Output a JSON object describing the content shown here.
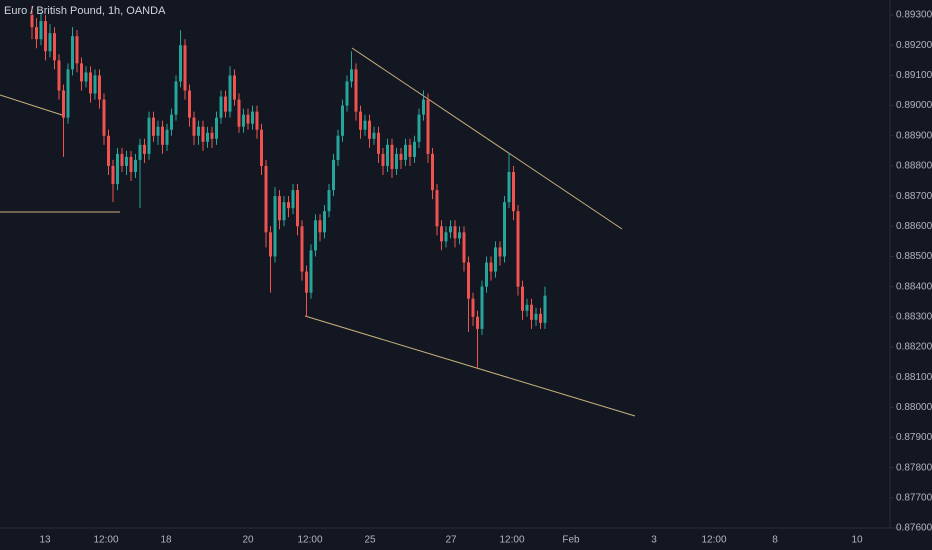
{
  "chart_data": {
    "type": "candlestick",
    "title": "Euro / British Pound, 1h, OANDA",
    "up_color": "#26a69a",
    "down_color": "#ef5350",
    "ylim": [
      0.876,
      0.8935
    ],
    "yticks": [
      {
        "value": 0.893,
        "label": "0.89300"
      },
      {
        "value": 0.892,
        "label": "0.89200"
      },
      {
        "value": 0.891,
        "label": "0.89100"
      },
      {
        "value": 0.89,
        "label": "0.89000"
      },
      {
        "value": 0.889,
        "label": "0.88900"
      },
      {
        "value": 0.888,
        "label": "0.88800"
      },
      {
        "value": 0.887,
        "label": "0.88700"
      },
      {
        "value": 0.886,
        "label": "0.88600"
      },
      {
        "value": 0.885,
        "label": "0.88500"
      },
      {
        "value": 0.884,
        "label": "0.88400"
      },
      {
        "value": 0.883,
        "label": "0.88300"
      },
      {
        "value": 0.882,
        "label": "0.88200"
      },
      {
        "value": 0.881,
        "label": "0.88100"
      },
      {
        "value": 0.88,
        "label": "0.88000"
      },
      {
        "value": 0.879,
        "label": "0.87900"
      },
      {
        "value": 0.878,
        "label": "0.87800"
      },
      {
        "value": 0.877,
        "label": "0.87700"
      },
      {
        "value": 0.876,
        "label": "0.87600"
      }
    ],
    "x_labels": [
      "13",
      "12:00",
      "18",
      "20",
      "12:00",
      "25",
      "27",
      "12:00",
      "Feb",
      "3",
      "12:00",
      "8",
      "10"
    ],
    "candles": [
      [
        0.893,
        0.8933,
        0.8922,
        0.8926
      ],
      [
        0.8926,
        0.8929,
        0.8919,
        0.8922
      ],
      [
        0.8922,
        0.8931,
        0.892,
        0.8928
      ],
      [
        0.8928,
        0.893,
        0.8915,
        0.8918
      ],
      [
        0.8918,
        0.8927,
        0.8916,
        0.8924
      ],
      [
        0.8924,
        0.8926,
        0.8912,
        0.8915
      ],
      [
        0.8915,
        0.8917,
        0.8902,
        0.8905
      ],
      [
        0.8905,
        0.8907,
        0.8883,
        0.8896
      ],
      [
        0.8896,
        0.8914,
        0.8894,
        0.8912
      ],
      [
        0.8912,
        0.8926,
        0.891,
        0.8923
      ],
      [
        0.8923,
        0.8925,
        0.8911,
        0.8914
      ],
      [
        0.8914,
        0.8916,
        0.8905,
        0.8908
      ],
      [
        0.8908,
        0.8913,
        0.8906,
        0.8911
      ],
      [
        0.8911,
        0.8913,
        0.8901,
        0.8904
      ],
      [
        0.8904,
        0.8912,
        0.8902,
        0.891
      ],
      [
        0.891,
        0.8912,
        0.8899,
        0.8902
      ],
      [
        0.8902,
        0.8904,
        0.8887,
        0.889
      ],
      [
        0.889,
        0.8892,
        0.8877,
        0.888
      ],
      [
        0.888,
        0.8882,
        0.8868,
        0.8874
      ],
      [
        0.8874,
        0.8886,
        0.8872,
        0.8884
      ],
      [
        0.8884,
        0.8886,
        0.8878,
        0.888
      ],
      [
        0.888,
        0.8885,
        0.8877,
        0.8883
      ],
      [
        0.8883,
        0.8885,
        0.8875,
        0.8878
      ],
      [
        0.8878,
        0.8884,
        0.8876,
        0.8882
      ],
      [
        0.8882,
        0.8889,
        0.8866,
        0.8887
      ],
      [
        0.8887,
        0.8889,
        0.8881,
        0.8884
      ],
      [
        0.8884,
        0.8898,
        0.8882,
        0.8896
      ],
      [
        0.8896,
        0.8898,
        0.8888,
        0.889
      ],
      [
        0.889,
        0.8895,
        0.8887,
        0.8893
      ],
      [
        0.8893,
        0.8895,
        0.8884,
        0.8887
      ],
      [
        0.8887,
        0.8894,
        0.8885,
        0.8892
      ],
      [
        0.8892,
        0.8899,
        0.889,
        0.8897
      ],
      [
        0.8897,
        0.891,
        0.8895,
        0.8908
      ],
      [
        0.8908,
        0.8925,
        0.8906,
        0.892
      ],
      [
        0.892,
        0.8922,
        0.8902,
        0.8905
      ],
      [
        0.8905,
        0.8907,
        0.8893,
        0.8896
      ],
      [
        0.8896,
        0.8898,
        0.8887,
        0.889
      ],
      [
        0.889,
        0.8895,
        0.8887,
        0.8893
      ],
      [
        0.8893,
        0.8895,
        0.8885,
        0.8888
      ],
      [
        0.8888,
        0.8893,
        0.8886,
        0.8891
      ],
      [
        0.8891,
        0.8893,
        0.8886,
        0.8889
      ],
      [
        0.8889,
        0.8898,
        0.8887,
        0.8896
      ],
      [
        0.8896,
        0.8905,
        0.8894,
        0.8903
      ],
      [
        0.8903,
        0.8905,
        0.8896,
        0.8898
      ],
      [
        0.8898,
        0.8913,
        0.8896,
        0.891
      ],
      [
        0.891,
        0.8912,
        0.89,
        0.8902
      ],
      [
        0.8902,
        0.8904,
        0.8891,
        0.8893
      ],
      [
        0.8893,
        0.8899,
        0.8891,
        0.8897
      ],
      [
        0.8897,
        0.8899,
        0.8892,
        0.8894
      ],
      [
        0.8894,
        0.89,
        0.8892,
        0.8898
      ],
      [
        0.8898,
        0.89,
        0.8889,
        0.8892
      ],
      [
        0.8892,
        0.8894,
        0.8877,
        0.888
      ],
      [
        0.888,
        0.8882,
        0.8853,
        0.8858
      ],
      [
        0.8858,
        0.886,
        0.8838,
        0.885
      ],
      [
        0.885,
        0.8873,
        0.8848,
        0.887
      ],
      [
        0.887,
        0.8872,
        0.8859,
        0.8862
      ],
      [
        0.8862,
        0.887,
        0.886,
        0.8868
      ],
      [
        0.8868,
        0.887,
        0.8863,
        0.8866
      ],
      [
        0.8866,
        0.8874,
        0.8864,
        0.8872
      ],
      [
        0.8872,
        0.8874,
        0.8857,
        0.886
      ],
      [
        0.886,
        0.8862,
        0.8842,
        0.8845
      ],
      [
        0.8845,
        0.8847,
        0.883,
        0.8838
      ],
      [
        0.8838,
        0.8854,
        0.8836,
        0.8852
      ],
      [
        0.8852,
        0.8864,
        0.885,
        0.8862
      ],
      [
        0.8862,
        0.8864,
        0.8855,
        0.8858
      ],
      [
        0.8858,
        0.8867,
        0.8856,
        0.8865
      ],
      [
        0.8865,
        0.8874,
        0.8863,
        0.8872
      ],
      [
        0.8872,
        0.8884,
        0.887,
        0.8882
      ],
      [
        0.8882,
        0.8892,
        0.888,
        0.889
      ],
      [
        0.889,
        0.8902,
        0.8888,
        0.89
      ],
      [
        0.89,
        0.891,
        0.8898,
        0.8908
      ],
      [
        0.8908,
        0.8918,
        0.8906,
        0.8912
      ],
      [
        0.8912,
        0.8914,
        0.8895,
        0.8898
      ],
      [
        0.8898,
        0.89,
        0.8889,
        0.8892
      ],
      [
        0.8892,
        0.8897,
        0.889,
        0.8895
      ],
      [
        0.8895,
        0.8897,
        0.8886,
        0.8889
      ],
      [
        0.8889,
        0.8893,
        0.8887,
        0.8891
      ],
      [
        0.8891,
        0.8893,
        0.8881,
        0.8884
      ],
      [
        0.8884,
        0.8886,
        0.8877,
        0.888
      ],
      [
        0.888,
        0.8889,
        0.8878,
        0.8887
      ],
      [
        0.8887,
        0.8889,
        0.8876,
        0.8879
      ],
      [
        0.8879,
        0.8886,
        0.8877,
        0.8884
      ],
      [
        0.8884,
        0.8886,
        0.8879,
        0.8882
      ],
      [
        0.8882,
        0.8889,
        0.888,
        0.8887
      ],
      [
        0.8887,
        0.8889,
        0.888,
        0.8883
      ],
      [
        0.8883,
        0.889,
        0.8881,
        0.8888
      ],
      [
        0.8888,
        0.8899,
        0.8886,
        0.8897
      ],
      [
        0.8897,
        0.8905,
        0.8895,
        0.8902
      ],
      [
        0.8902,
        0.8904,
        0.8881,
        0.8884
      ],
      [
        0.8884,
        0.8886,
        0.8869,
        0.8872
      ],
      [
        0.8872,
        0.8874,
        0.8857,
        0.886
      ],
      [
        0.886,
        0.8862,
        0.8852,
        0.8855
      ],
      [
        0.8855,
        0.886,
        0.8853,
        0.8858
      ],
      [
        0.8858,
        0.8862,
        0.8856,
        0.886
      ],
      [
        0.886,
        0.8862,
        0.8853,
        0.8856
      ],
      [
        0.8856,
        0.886,
        0.8854,
        0.8858
      ],
      [
        0.8858,
        0.886,
        0.8845,
        0.8848
      ],
      [
        0.8848,
        0.885,
        0.8825,
        0.8836
      ],
      [
        0.8836,
        0.8838,
        0.8827,
        0.883
      ],
      [
        0.883,
        0.8832,
        0.8813,
        0.8826
      ],
      [
        0.8826,
        0.8842,
        0.8824,
        0.884
      ],
      [
        0.884,
        0.885,
        0.8838,
        0.8848
      ],
      [
        0.8848,
        0.885,
        0.8842,
        0.8845
      ],
      [
        0.8845,
        0.8855,
        0.8843,
        0.8853
      ],
      [
        0.8853,
        0.8855,
        0.8847,
        0.885
      ],
      [
        0.885,
        0.887,
        0.8848,
        0.8868
      ],
      [
        0.8868,
        0.8884,
        0.8866,
        0.8878
      ],
      [
        0.8878,
        0.888,
        0.8862,
        0.8865
      ],
      [
        0.8865,
        0.8867,
        0.8837,
        0.884
      ],
      [
        0.884,
        0.8842,
        0.8829,
        0.8832
      ],
      [
        0.8832,
        0.8836,
        0.883,
        0.8834
      ],
      [
        0.8834,
        0.8836,
        0.8826,
        0.8829
      ],
      [
        0.8829,
        0.8833,
        0.8827,
        0.8831
      ],
      [
        0.8831,
        0.8833,
        0.8826,
        0.8828
      ],
      [
        0.8828,
        0.884,
        0.8826,
        0.8837
      ]
    ]
  }
}
